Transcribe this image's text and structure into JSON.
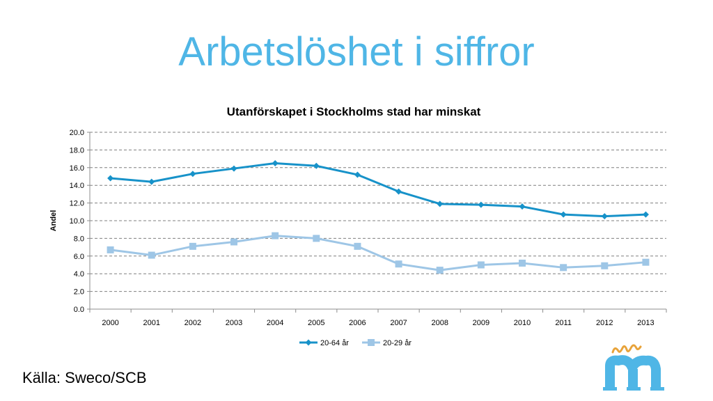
{
  "slide": {
    "title": "Arbetslöshet i siffror",
    "source": "Källa: Sweco/SCB",
    "logo_text": "nya m"
  },
  "colors": {
    "title": "#4fb6e6",
    "series1": "#1792c9",
    "series2": "#9ec6e6",
    "grid": "#7f7f7f"
  },
  "chart_data": {
    "type": "line",
    "title": "Utanförskapet i Stockholms stad har minskat",
    "xlabel": "",
    "ylabel": "Andel",
    "ylim": [
      0,
      20
    ],
    "y_ticks": [
      "0.0",
      "2.0",
      "4.0",
      "6.0",
      "8.0",
      "10.0",
      "12.0",
      "14.0",
      "16.0",
      "18.0",
      "20.0"
    ],
    "grid": "horizontal dashed",
    "legend": "bottom",
    "categories": [
      "2000",
      "2001",
      "2002",
      "2003",
      "2004",
      "2005",
      "2006",
      "2007",
      "2008",
      "2009",
      "2010",
      "2011",
      "2012",
      "2013"
    ],
    "series": [
      {
        "name": "20-64 år",
        "marker": "diamond",
        "color": "#1792c9",
        "values": [
          14.8,
          14.4,
          15.3,
          15.9,
          16.5,
          16.2,
          15.2,
          13.3,
          11.9,
          11.8,
          11.6,
          10.7,
          10.5,
          10.7
        ]
      },
      {
        "name": "20-29 år",
        "marker": "square",
        "color": "#9ec6e6",
        "values": [
          6.7,
          6.1,
          7.1,
          7.6,
          8.3,
          8.0,
          7.1,
          5.1,
          4.4,
          5.0,
          5.2,
          4.7,
          4.9,
          5.3
        ]
      }
    ]
  }
}
